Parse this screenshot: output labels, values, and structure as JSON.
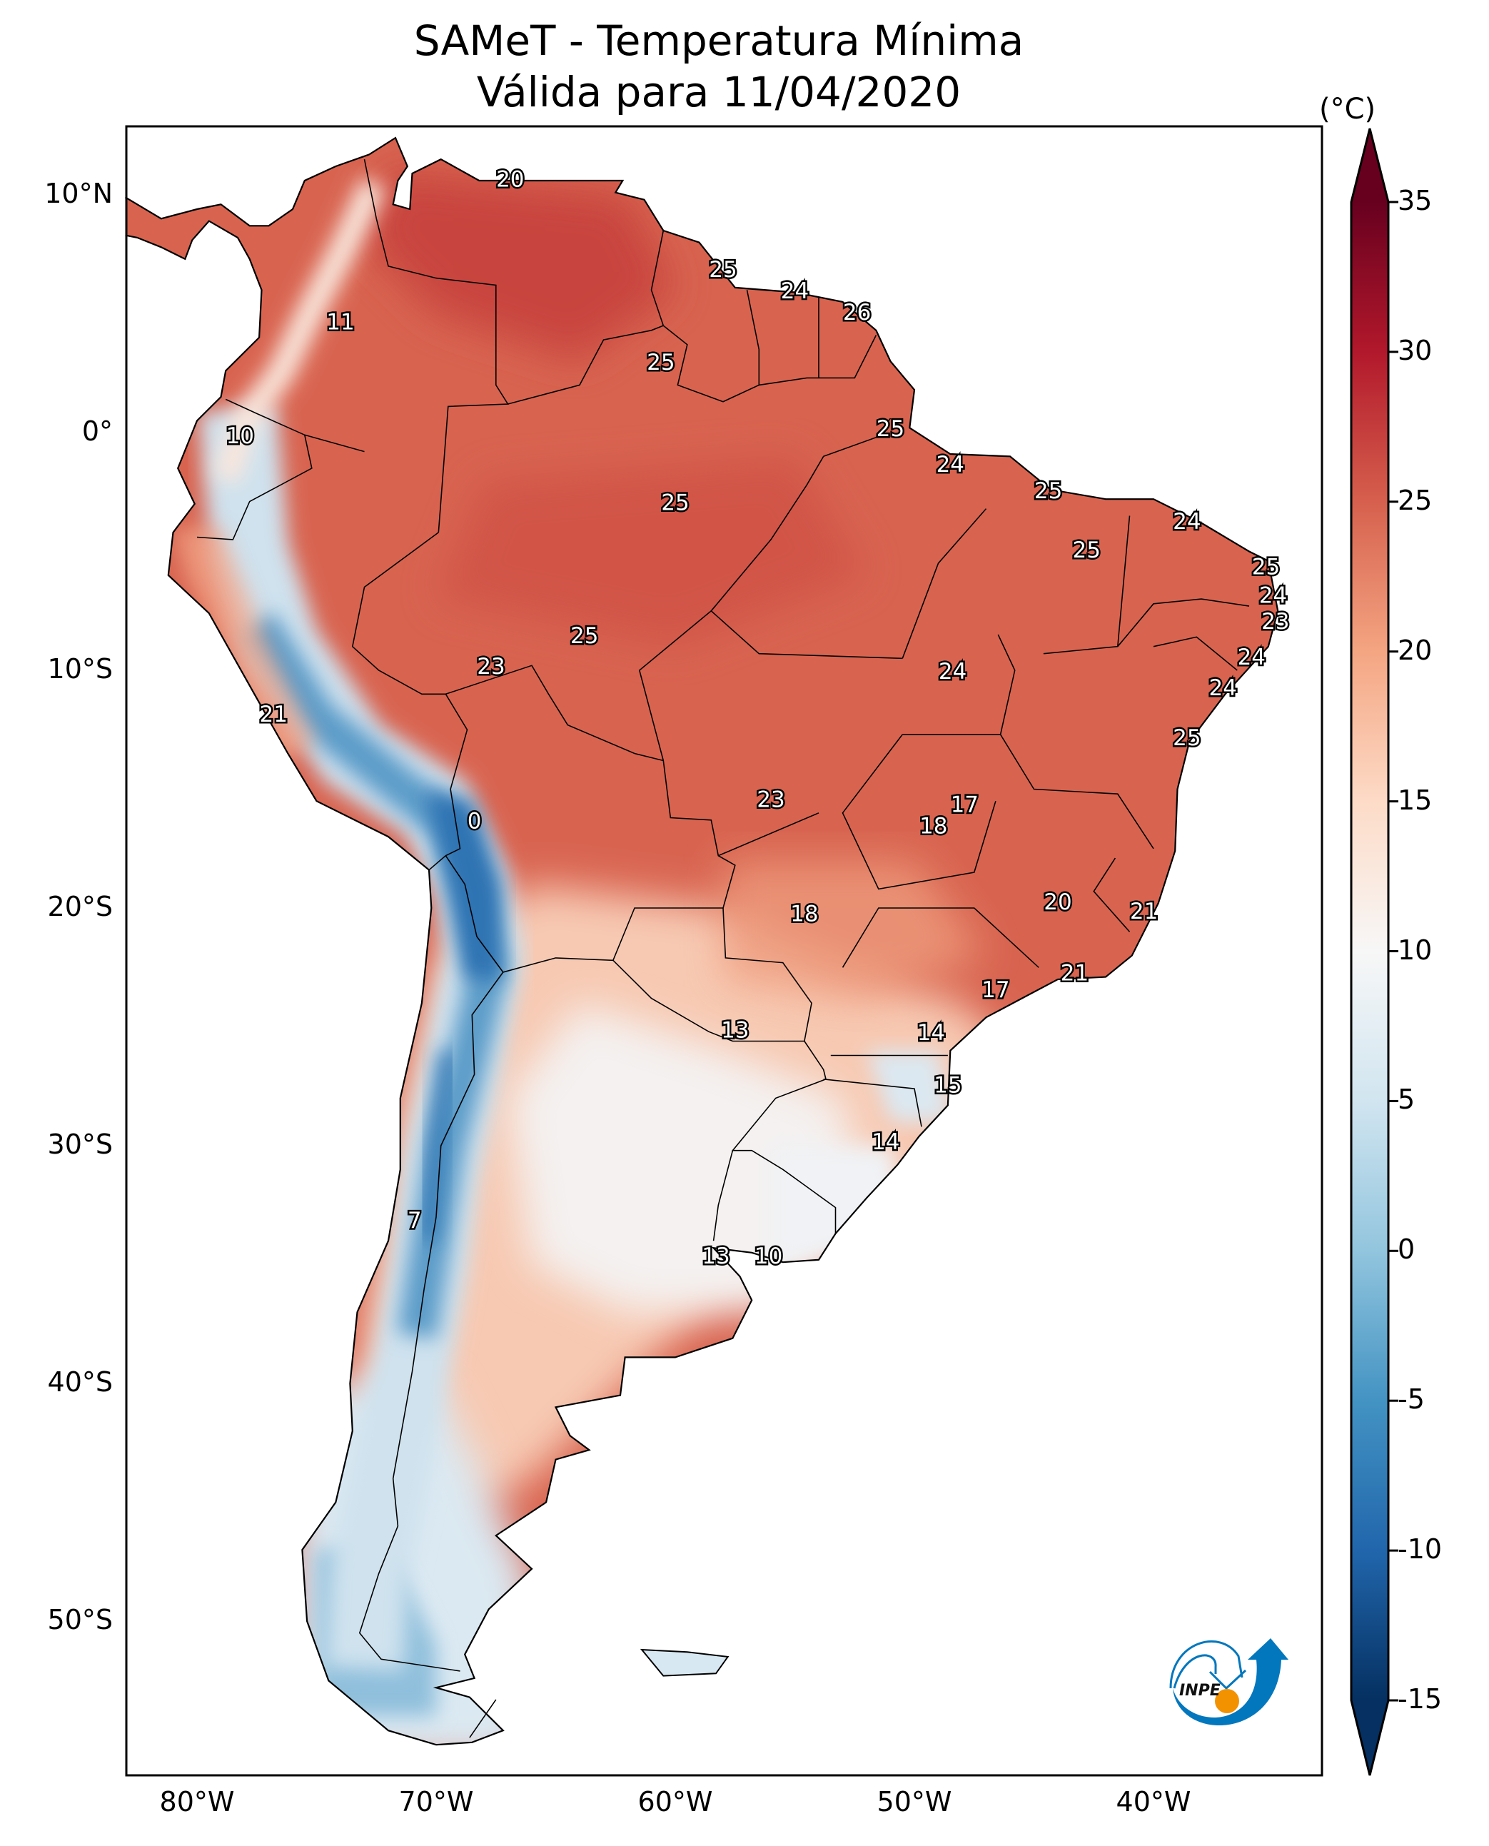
{
  "title": {
    "line1": "SAMeT - Temperatura Mínima",
    "line2": "Válida para 11/04/2020"
  },
  "axes": {
    "lat_labels": [
      {
        "text": "10°N",
        "lat": 10
      },
      {
        "text": "0°",
        "lat": 0
      },
      {
        "text": "10°S",
        "lat": -10
      },
      {
        "text": "20°S",
        "lat": -20
      },
      {
        "text": "30°S",
        "lat": -30
      },
      {
        "text": "40°S",
        "lat": -40
      },
      {
        "text": "50°S",
        "lat": -50
      }
    ],
    "lon_labels": [
      {
        "text": "80°W",
        "lon": -80
      },
      {
        "text": "70°W",
        "lon": -70
      },
      {
        "text": "60°W",
        "lon": -60
      },
      {
        "text": "50°W",
        "lon": -50
      },
      {
        "text": "40°W",
        "lon": -40
      }
    ],
    "extent": {
      "lon": [
        -83,
        -33
      ],
      "lat": [
        -56.5,
        12.9
      ]
    }
  },
  "colorbar": {
    "unit": "(°C)",
    "ticks": [
      "35",
      "30",
      "25",
      "20",
      "15",
      "10",
      "5",
      "0",
      "-5",
      "-10",
      "-15"
    ],
    "range": [
      -15,
      35
    ],
    "stops": [
      {
        "v": -15,
        "c": "#053061"
      },
      {
        "v": -10,
        "c": "#2166ac"
      },
      {
        "v": -5,
        "c": "#4393c3"
      },
      {
        "v": 0,
        "c": "#92c5de"
      },
      {
        "v": 5,
        "c": "#d1e5f0"
      },
      {
        "v": 10,
        "c": "#f7f7f7"
      },
      {
        "v": 15,
        "c": "#fddbc7"
      },
      {
        "v": 20,
        "c": "#f4a582"
      },
      {
        "v": 25,
        "c": "#d6604d"
      },
      {
        "v": 30,
        "c": "#b2182b"
      },
      {
        "v": 35,
        "c": "#67001f"
      }
    ]
  },
  "logo": {
    "text": "INPE",
    "colors": {
      "blue": "#0277bd",
      "orange": "#f39200"
    }
  },
  "station_labels": [
    {
      "value": "20",
      "lon": -66.9,
      "lat": 10.6
    },
    {
      "value": "25",
      "lon": -58.0,
      "lat": 6.8
    },
    {
      "value": "24",
      "lon": -55.0,
      "lat": 5.9
    },
    {
      "value": "26",
      "lon": -52.4,
      "lat": 5.0
    },
    {
      "value": "11",
      "lon": -74.0,
      "lat": 4.6
    },
    {
      "value": "25",
      "lon": -60.6,
      "lat": 2.9
    },
    {
      "value": "10",
      "lon": -78.2,
      "lat": -0.2
    },
    {
      "value": "25",
      "lon": -51.0,
      "lat": 0.1
    },
    {
      "value": "24",
      "lon": -48.5,
      "lat": -1.4
    },
    {
      "value": "25",
      "lon": -60.0,
      "lat": -3.0
    },
    {
      "value": "25",
      "lon": -44.4,
      "lat": -2.5
    },
    {
      "value": "24",
      "lon": -38.6,
      "lat": -3.8
    },
    {
      "value": "25",
      "lon": -42.8,
      "lat": -5.0
    },
    {
      "value": "25",
      "lon": -35.3,
      "lat": -5.7
    },
    {
      "value": "24",
      "lon": -35.0,
      "lat": -6.9
    },
    {
      "value": "23",
      "lon": -34.9,
      "lat": -8.0
    },
    {
      "value": "25",
      "lon": -63.8,
      "lat": -8.6
    },
    {
      "value": "24",
      "lon": -35.9,
      "lat": -9.5
    },
    {
      "value": "23",
      "lon": -67.7,
      "lat": -9.9
    },
    {
      "value": "24",
      "lon": -48.4,
      "lat": -10.1
    },
    {
      "value": "24",
      "lon": -37.1,
      "lat": -10.8
    },
    {
      "value": "21",
      "lon": -76.8,
      "lat": -11.9
    },
    {
      "value": "25",
      "lon": -38.6,
      "lat": -12.9
    },
    {
      "value": "23",
      "lon": -56.0,
      "lat": -15.5
    },
    {
      "value": "17",
      "lon": -47.9,
      "lat": -15.7
    },
    {
      "value": "18",
      "lon": -49.2,
      "lat": -16.6
    },
    {
      "value": "0",
      "lon": -68.4,
      "lat": -16.4
    },
    {
      "value": "20",
      "lon": -44.0,
      "lat": -19.8
    },
    {
      "value": "21",
      "lon": -40.4,
      "lat": -20.2
    },
    {
      "value": "18",
      "lon": -54.6,
      "lat": -20.3
    },
    {
      "value": "21",
      "lon": -43.3,
      "lat": -22.8
    },
    {
      "value": "17",
      "lon": -46.6,
      "lat": -23.5
    },
    {
      "value": "13",
      "lon": -57.5,
      "lat": -25.2
    },
    {
      "value": "14",
      "lon": -49.3,
      "lat": -25.3
    },
    {
      "value": "15",
      "lon": -48.6,
      "lat": -27.5
    },
    {
      "value": "14",
      "lon": -51.2,
      "lat": -29.9
    },
    {
      "value": "7",
      "lon": -70.9,
      "lat": -33.2
    },
    {
      "value": "13",
      "lon": -58.3,
      "lat": -34.7
    },
    {
      "value": "10",
      "lon": -56.1,
      "lat": -34.7
    }
  ]
}
